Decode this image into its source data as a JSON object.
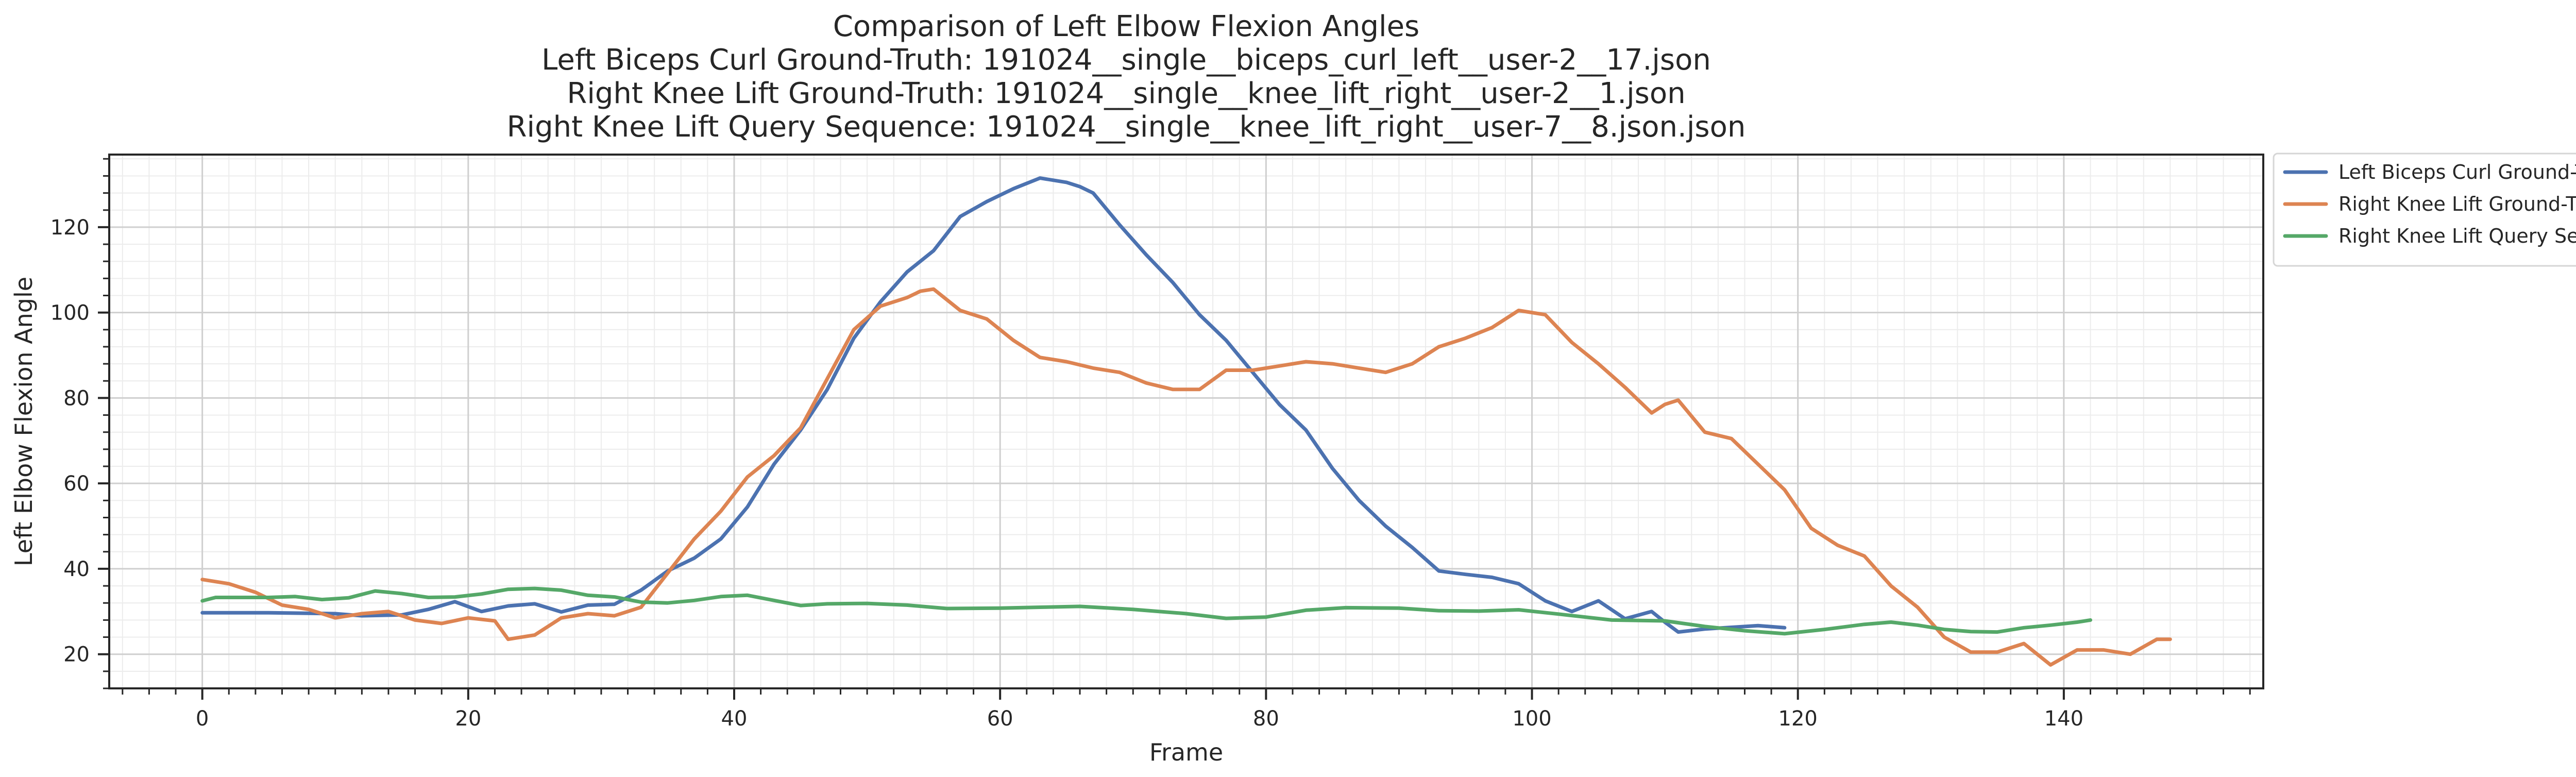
{
  "chart_data": {
    "type": "line",
    "title_lines": [
      "Comparison of Left Elbow Flexion Angles",
      "Left Biceps Curl Ground-Truth: 191024__single__biceps_curl_left__user-2__17.json",
      "Right Knee Lift Ground-Truth: 191024__single__knee_lift_right__user-2__1.json",
      "Right Knee Lift Query Sequence: 191024__single__knee_lift_right__user-7__8.json.json"
    ],
    "xlabel": "Frame",
    "ylabel": "Left Elbow Flexion Angle",
    "xlim": [
      -7,
      155
    ],
    "ylim": [
      12,
      137
    ],
    "xticks": [
      0,
      20,
      40,
      60,
      80,
      100,
      120,
      140
    ],
    "yticks": [
      20,
      40,
      60,
      80,
      100,
      120
    ],
    "grid": true,
    "legend_position": "outside-top-right",
    "series": [
      {
        "name": "Left Biceps Curl Ground-Truth",
        "color": "#4c72b0",
        "points": [
          [
            0,
            29.7
          ],
          [
            5,
            29.7
          ],
          [
            10,
            29.5
          ],
          [
            12,
            29.0
          ],
          [
            15,
            29.2
          ],
          [
            17,
            30.5
          ],
          [
            19,
            32.3
          ],
          [
            21,
            30.0
          ],
          [
            23,
            31.3
          ],
          [
            25,
            31.8
          ],
          [
            27,
            29.9
          ],
          [
            29,
            31.5
          ],
          [
            31,
            31.7
          ],
          [
            33,
            35.0
          ],
          [
            35,
            39.5
          ],
          [
            37,
            42.5
          ],
          [
            39,
            47.0
          ],
          [
            41,
            54.5
          ],
          [
            43,
            64.5
          ],
          [
            45,
            72.5
          ],
          [
            47,
            82.0
          ],
          [
            49,
            94.0
          ],
          [
            51,
            102.5
          ],
          [
            53,
            109.5
          ],
          [
            55,
            114.5
          ],
          [
            57,
            122.5
          ],
          [
            59,
            126.0
          ],
          [
            61,
            129.0
          ],
          [
            63,
            131.5
          ],
          [
            65,
            130.5
          ],
          [
            66,
            129.5
          ],
          [
            67,
            128.0
          ],
          [
            69,
            120.5
          ],
          [
            71,
            113.5
          ],
          [
            73,
            107.0
          ],
          [
            75,
            99.5
          ],
          [
            77,
            93.5
          ],
          [
            79,
            86.0
          ],
          [
            81,
            78.5
          ],
          [
            83,
            72.5
          ],
          [
            85,
            63.5
          ],
          [
            87,
            56.0
          ],
          [
            89,
            50.0
          ],
          [
            91,
            45.0
          ],
          [
            93,
            39.5
          ],
          [
            95,
            38.7
          ],
          [
            97,
            38.0
          ],
          [
            99,
            36.5
          ],
          [
            101,
            32.5
          ],
          [
            103,
            30.0
          ],
          [
            105,
            32.5
          ],
          [
            107,
            28.3
          ],
          [
            109,
            30.0
          ],
          [
            110,
            27.5
          ],
          [
            111,
            25.2
          ],
          [
            113,
            25.9
          ],
          [
            115,
            26.3
          ],
          [
            117,
            26.7
          ],
          [
            119,
            26.2
          ]
        ]
      },
      {
        "name": "Right Knee Lift Ground-Truth",
        "color": "#dd8452",
        "points": [
          [
            0,
            37.5
          ],
          [
            2,
            36.5
          ],
          [
            4,
            34.5
          ],
          [
            6,
            31.5
          ],
          [
            8,
            30.5
          ],
          [
            10,
            28.5
          ],
          [
            12,
            29.5
          ],
          [
            14,
            30.0
          ],
          [
            16,
            28.0
          ],
          [
            18,
            27.2
          ],
          [
            20,
            28.5
          ],
          [
            22,
            27.8
          ],
          [
            23,
            23.5
          ],
          [
            25,
            24.5
          ],
          [
            27,
            28.5
          ],
          [
            29,
            29.5
          ],
          [
            31,
            29.0
          ],
          [
            33,
            31.0
          ],
          [
            35,
            39.0
          ],
          [
            37,
            47.0
          ],
          [
            39,
            53.5
          ],
          [
            41,
            61.5
          ],
          [
            43,
            66.5
          ],
          [
            45,
            73.0
          ],
          [
            47,
            84.5
          ],
          [
            49,
            96.0
          ],
          [
            51,
            101.5
          ],
          [
            53,
            103.5
          ],
          [
            54,
            105.0
          ],
          [
            55,
            105.5
          ],
          [
            57,
            100.5
          ],
          [
            59,
            98.5
          ],
          [
            61,
            93.5
          ],
          [
            63,
            89.5
          ],
          [
            65,
            88.5
          ],
          [
            67,
            87.0
          ],
          [
            69,
            86.0
          ],
          [
            71,
            83.5
          ],
          [
            73,
            82.0
          ],
          [
            75,
            82.0
          ],
          [
            77,
            86.5
          ],
          [
            79,
            86.5
          ],
          [
            81,
            87.5
          ],
          [
            83,
            88.5
          ],
          [
            85,
            88.0
          ],
          [
            87,
            87.0
          ],
          [
            89,
            86.0
          ],
          [
            91,
            88.0
          ],
          [
            93,
            92.0
          ],
          [
            95,
            94.0
          ],
          [
            97,
            96.5
          ],
          [
            99,
            100.5
          ],
          [
            101,
            99.5
          ],
          [
            103,
            93.0
          ],
          [
            105,
            88.0
          ],
          [
            107,
            82.5
          ],
          [
            109,
            76.5
          ],
          [
            110,
            78.5
          ],
          [
            111,
            79.5
          ],
          [
            113,
            72.0
          ],
          [
            115,
            70.5
          ],
          [
            117,
            64.5
          ],
          [
            119,
            58.5
          ],
          [
            121,
            49.5
          ],
          [
            123,
            45.5
          ],
          [
            125,
            43.0
          ],
          [
            127,
            36.0
          ],
          [
            129,
            31.0
          ],
          [
            131,
            24.0
          ],
          [
            133,
            20.5
          ],
          [
            135,
            20.5
          ],
          [
            137,
            22.5
          ],
          [
            139,
            17.5
          ],
          [
            141,
            21.0
          ],
          [
            143,
            21.0
          ],
          [
            145,
            20.0
          ],
          [
            147,
            23.5
          ],
          [
            148,
            23.5
          ]
        ]
      },
      {
        "name": "Right Knee Lift Query Sequence",
        "color": "#55a868",
        "points": [
          [
            0,
            32.5
          ],
          [
            1,
            33.3
          ],
          [
            3,
            33.3
          ],
          [
            5,
            33.3
          ],
          [
            7,
            33.5
          ],
          [
            9,
            32.8
          ],
          [
            11,
            33.2
          ],
          [
            13,
            34.8
          ],
          [
            15,
            34.2
          ],
          [
            17,
            33.3
          ],
          [
            19,
            33.4
          ],
          [
            21,
            34.1
          ],
          [
            23,
            35.2
          ],
          [
            25,
            35.4
          ],
          [
            27,
            35.0
          ],
          [
            29,
            33.8
          ],
          [
            31,
            33.4
          ],
          [
            33,
            32.2
          ],
          [
            35,
            32.0
          ],
          [
            37,
            32.6
          ],
          [
            39,
            33.5
          ],
          [
            41,
            33.8
          ],
          [
            43,
            32.6
          ],
          [
            45,
            31.4
          ],
          [
            47,
            31.8
          ],
          [
            50,
            31.9
          ],
          [
            53,
            31.5
          ],
          [
            56,
            30.7
          ],
          [
            60,
            30.8
          ],
          [
            63,
            31.0
          ],
          [
            66,
            31.2
          ],
          [
            70,
            30.5
          ],
          [
            74,
            29.5
          ],
          [
            77,
            28.4
          ],
          [
            80,
            28.7
          ],
          [
            83,
            30.3
          ],
          [
            86,
            30.9
          ],
          [
            90,
            30.8
          ],
          [
            93,
            30.2
          ],
          [
            96,
            30.1
          ],
          [
            99,
            30.4
          ],
          [
            102,
            29.4
          ],
          [
            106,
            28.0
          ],
          [
            110,
            27.8
          ],
          [
            113,
            26.5
          ],
          [
            116,
            25.5
          ],
          [
            119,
            24.8
          ],
          [
            122,
            25.8
          ],
          [
            125,
            27.0
          ],
          [
            127,
            27.5
          ],
          [
            129,
            26.8
          ],
          [
            131,
            25.8
          ],
          [
            133,
            25.3
          ],
          [
            135,
            25.2
          ],
          [
            137,
            26.2
          ],
          [
            139,
            26.8
          ],
          [
            141,
            27.5
          ],
          [
            142,
            28.0
          ]
        ]
      }
    ]
  }
}
